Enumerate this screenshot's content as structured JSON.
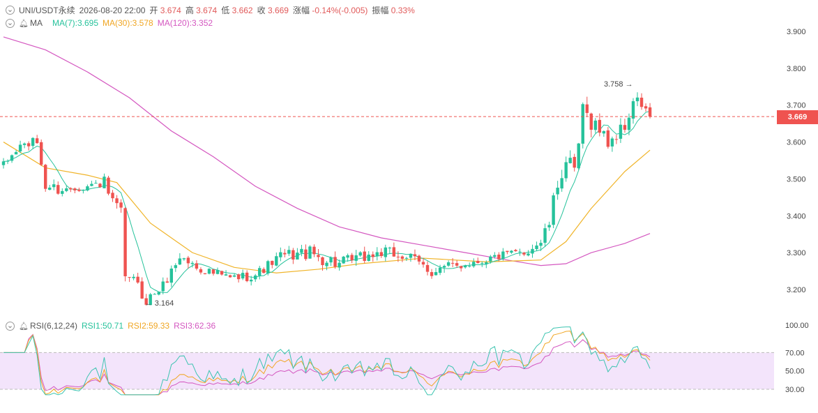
{
  "header": {
    "symbol": "UNI/USDT永续",
    "datetime": "2026-08-20 22:00",
    "open_label": "开",
    "open": "3.674",
    "high_label": "高",
    "high": "3.674",
    "low_label": "低",
    "low": "3.662",
    "close_label": "收",
    "close": "3.669",
    "change_label": "涨幅",
    "change": "-0.14%(-0.005)",
    "amplitude_label": "振幅",
    "amplitude": "0.33%"
  },
  "ma_legend": {
    "name": "MA",
    "ma7": "MA(7):3.695",
    "ma30": "MA(30):3.578",
    "ma120": "MA(120):3.352"
  },
  "rsi_legend": {
    "name": "RSI(6,12,24)",
    "rsi1": "RSI1:50.71",
    "rsi2": "RSI2:59.33",
    "rsi3": "RSI3:62.36"
  },
  "colors": {
    "up": "#26c29b",
    "down": "#ef5350",
    "ma7": "#26c29b",
    "ma30": "#f0b429",
    "ma120": "#d457c0",
    "rsi1": "#3cc4b0",
    "rsi2": "#f0a623",
    "rsi3": "#d457c0",
    "rsi_band": "#f3e4fb"
  },
  "chart_data": {
    "type": "candlestick",
    "price_ticks": [
      "3.900",
      "3.800",
      "3.700",
      "3.600",
      "3.500",
      "3.400",
      "3.300",
      "3.200"
    ],
    "price_ylim": [
      3.12,
      3.94
    ],
    "current_price": "3.669",
    "annotations": [
      {
        "text": "3.758",
        "value": 3.758,
        "bar_index": 150
      },
      {
        "text": "3.164",
        "value": 3.164,
        "bar_index": 35
      }
    ],
    "rsi_ticks": [
      "100.00",
      "70.00",
      "50.00",
      "30.00"
    ],
    "rsi_ylim": [
      22,
      100
    ],
    "rsi_band": [
      30,
      70
    ],
    "candle_count": 155,
    "candle_segments": [
      [
        0,
        3.535,
        "chop",
        0.02
      ],
      [
        4,
        3.59,
        "chop",
        0.02
      ],
      [
        8,
        3.6,
        "chop",
        0.02
      ],
      [
        10,
        3.48,
        "chop",
        0.025
      ],
      [
        14,
        3.47,
        "chop",
        0.015
      ],
      [
        20,
        3.48,
        "chop",
        0.02
      ],
      [
        24,
        3.49,
        "chop",
        0.025
      ],
      [
        26,
        3.43,
        "chop",
        0.03
      ],
      [
        28,
        3.41,
        "chop",
        0.025
      ],
      [
        29,
        3.21,
        "chop",
        0.04
      ],
      [
        30,
        3.24,
        "chop",
        0.03
      ],
      [
        34,
        3.17,
        "chop",
        0.02
      ],
      [
        38,
        3.21,
        "chop",
        0.02
      ],
      [
        42,
        3.29,
        "chop",
        0.025
      ],
      [
        46,
        3.26,
        "chop",
        0.02
      ],
      [
        54,
        3.23,
        "chop",
        0.02
      ],
      [
        60,
        3.24,
        "chop",
        0.02
      ],
      [
        66,
        3.29,
        "chop",
        0.025
      ],
      [
        72,
        3.3,
        "chop",
        0.03
      ],
      [
        80,
        3.27,
        "chop",
        0.025
      ],
      [
        90,
        3.3,
        "chop",
        0.025
      ],
      [
        96,
        3.29,
        "chop",
        0.025
      ],
      [
        102,
        3.25,
        "chop",
        0.025
      ],
      [
        110,
        3.27,
        "chop",
        0.02
      ],
      [
        118,
        3.29,
        "chop",
        0.02
      ],
      [
        124,
        3.3,
        "chop",
        0.02
      ],
      [
        128,
        3.33,
        "chop",
        0.025
      ],
      [
        130,
        3.38,
        "chop",
        0.03
      ],
      [
        132,
        3.49,
        "chop",
        0.04
      ],
      [
        134,
        3.55,
        "chop",
        0.04
      ],
      [
        136,
        3.51,
        "chop",
        0.04
      ],
      [
        138,
        3.68,
        "chop",
        0.04
      ],
      [
        141,
        3.65,
        "chop",
        0.03
      ],
      [
        144,
        3.6,
        "chop",
        0.03
      ],
      [
        148,
        3.64,
        "chop",
        0.03
      ],
      [
        150,
        3.71,
        "chop",
        0.03
      ],
      [
        152,
        3.7,
        "chop",
        0.02
      ],
      [
        154,
        3.669,
        "chop",
        0.02
      ]
    ],
    "ma30_points": [
      [
        0,
        3.6
      ],
      [
        10,
        3.53
      ],
      [
        20,
        3.51
      ],
      [
        27,
        3.49
      ],
      [
        35,
        3.38
      ],
      [
        45,
        3.3
      ],
      [
        55,
        3.26
      ],
      [
        65,
        3.245
      ],
      [
        75,
        3.255
      ],
      [
        85,
        3.27
      ],
      [
        100,
        3.285
      ],
      [
        115,
        3.275
      ],
      [
        128,
        3.28
      ],
      [
        134,
        3.33
      ],
      [
        140,
        3.42
      ],
      [
        148,
        3.52
      ],
      [
        154,
        3.578
      ]
    ],
    "ma120_points": [
      [
        0,
        3.885
      ],
      [
        10,
        3.85
      ],
      [
        20,
        3.79
      ],
      [
        30,
        3.72
      ],
      [
        40,
        3.63
      ],
      [
        50,
        3.56
      ],
      [
        60,
        3.48
      ],
      [
        70,
        3.42
      ],
      [
        80,
        3.37
      ],
      [
        90,
        3.34
      ],
      [
        100,
        3.32
      ],
      [
        110,
        3.3
      ],
      [
        120,
        3.28
      ],
      [
        128,
        3.265
      ],
      [
        134,
        3.27
      ],
      [
        140,
        3.3
      ],
      [
        148,
        3.325
      ],
      [
        154,
        3.352
      ]
    ]
  }
}
